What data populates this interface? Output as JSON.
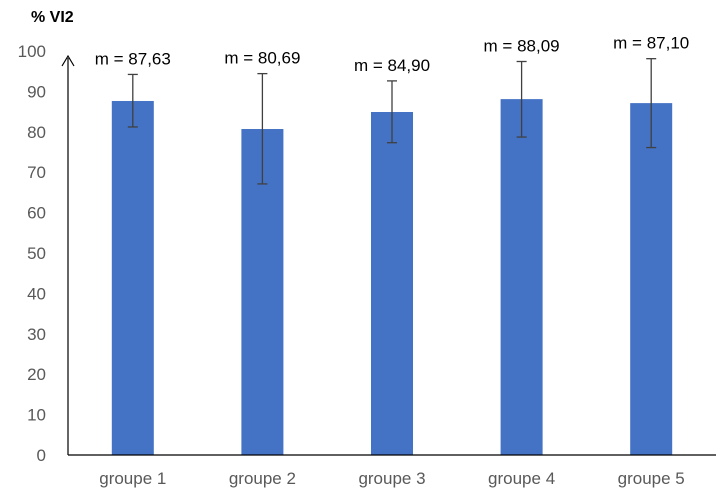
{
  "chart_data": {
    "type": "bar",
    "title": "",
    "xlabel": "",
    "ylabel": "% VI2",
    "ylim": [
      0,
      100
    ],
    "yticks": [
      0,
      10,
      20,
      30,
      40,
      50,
      60,
      70,
      80,
      90,
      100
    ],
    "grid": false,
    "categories": [
      "groupe 1",
      "groupe 2",
      "groupe 3",
      "groupe 4",
      "groupe 5"
    ],
    "values": [
      87.63,
      80.69,
      84.9,
      88.09,
      87.1
    ],
    "error_low": [
      81.2,
      67.1,
      77.3,
      78.7,
      76.1
    ],
    "error_high": [
      94.2,
      94.4,
      92.6,
      97.4,
      98.1
    ],
    "data_labels": [
      "m = 87,63",
      "m = 80,69",
      "m = 84,90",
      "m = 88,09",
      "m = 87,10"
    ],
    "colors": {
      "bar": "#4472C4",
      "axis": "#000000",
      "error_bar": "#404040",
      "tick_text": "#595959"
    }
  }
}
